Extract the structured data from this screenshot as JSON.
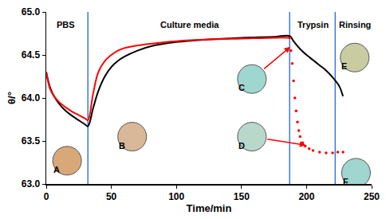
{
  "chart_data": {
    "type": "line",
    "xlabel": "Time/min",
    "ylabel": "θ/°",
    "xlim": [
      0,
      250
    ],
    "ylim": [
      63,
      65
    ],
    "xticks": [
      0,
      50,
      100,
      150,
      200,
      250
    ],
    "yticks": [
      {
        "value": 63,
        "label": "63.0"
      },
      63.5,
      {
        "value": 64,
        "label": "64.0"
      },
      64.5,
      {
        "value": 65,
        "label": "65.0"
      }
    ],
    "grid": false,
    "series": [
      {
        "color": "#000000",
        "line_style": "solid",
        "x": [
          0,
          3,
          6,
          10,
          15,
          20,
          25,
          30,
          32,
          36,
          40,
          45,
          50,
          55,
          60,
          70,
          80,
          100,
          125,
          150,
          175,
          187,
          190,
          195,
          200,
          205,
          210,
          215,
          220,
          225,
          228
        ],
        "values": [
          64.3,
          64.12,
          64.02,
          63.93,
          63.85,
          63.79,
          63.74,
          63.69,
          63.67,
          63.88,
          64.08,
          64.25,
          64.36,
          64.43,
          64.48,
          64.55,
          64.6,
          64.65,
          64.68,
          64.7,
          64.71,
          64.72,
          64.66,
          64.57,
          64.5,
          64.44,
          64.38,
          64.32,
          64.24,
          64.14,
          64.02
        ]
      },
      {
        "color": "#ff0000",
        "line_style": "solid",
        "x": [
          0,
          3,
          6,
          10,
          15,
          20,
          25,
          30,
          32,
          36,
          40,
          45,
          50,
          55,
          60,
          70,
          80,
          100,
          125,
          150,
          175,
          187
        ],
        "values": [
          64.3,
          64.1,
          64.02,
          63.95,
          63.89,
          63.84,
          63.8,
          63.76,
          63.74,
          64.05,
          64.3,
          64.43,
          64.5,
          64.55,
          64.58,
          64.61,
          64.63,
          64.66,
          64.68,
          64.69,
          64.7,
          64.7
        ]
      },
      {
        "color": "#ff0000",
        "line_style": "dotted",
        "marker": "circle",
        "x": [
          187,
          188,
          189,
          190,
          191,
          192,
          193,
          194,
          195,
          197,
          199,
          202,
          205,
          210,
          215,
          220,
          224,
          228
        ],
        "values": [
          64.7,
          64.55,
          64.4,
          64.2,
          64.0,
          63.85,
          63.72,
          63.62,
          63.55,
          63.48,
          63.44,
          63.41,
          63.39,
          63.37,
          63.36,
          63.36,
          63.37,
          63.37
        ]
      }
    ],
    "phases": [
      {
        "label": "PBS",
        "x": 15
      },
      {
        "label": "Culture media",
        "x": 110
      },
      {
        "label": "Trypsin",
        "x": 205
      },
      {
        "label": "Rinsing",
        "x": 237
      }
    ],
    "phase_lines": {
      "color": "#3a7bd5",
      "x": [
        32,
        187,
        222
      ]
    },
    "insets": [
      {
        "label": "A",
        "color": "#d9a878"
      },
      {
        "label": "B",
        "color": "#d8b898"
      },
      {
        "label": "C",
        "color": "#9fd6cf",
        "arrow_to": [
          188,
          64.6
        ]
      },
      {
        "label": "D",
        "color": "#b8d8cc",
        "arrow_to": [
          200,
          63.45
        ]
      },
      {
        "label": "E",
        "color": "#c9cca0"
      },
      {
        "label": "F",
        "color": "#9fd6cf"
      }
    ]
  }
}
